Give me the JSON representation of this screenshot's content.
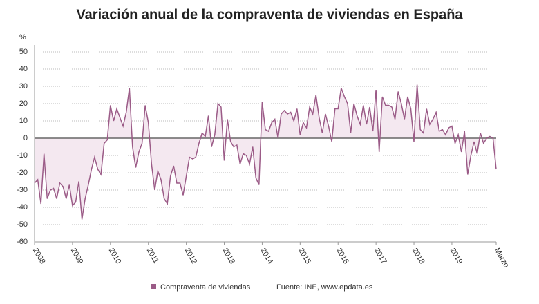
{
  "chart_data": {
    "type": "line",
    "title": "Variación anual de la compraventa de viviendas en España",
    "y_label": "%",
    "source": "Fuente: INE, www.epdata.es",
    "categories": [
      "2008",
      null,
      null,
      null,
      null,
      null,
      null,
      null,
      null,
      null,
      null,
      null,
      "2009",
      null,
      null,
      null,
      null,
      null,
      null,
      null,
      null,
      null,
      null,
      null,
      "2010",
      null,
      null,
      null,
      null,
      null,
      null,
      null,
      null,
      null,
      null,
      null,
      "2011",
      null,
      null,
      null,
      null,
      null,
      null,
      null,
      null,
      null,
      null,
      null,
      "2012",
      null,
      null,
      null,
      null,
      null,
      null,
      null,
      null,
      null,
      null,
      null,
      "2013",
      null,
      null,
      null,
      null,
      null,
      null,
      null,
      null,
      null,
      null,
      null,
      "2014",
      null,
      null,
      null,
      null,
      null,
      null,
      null,
      null,
      null,
      null,
      null,
      "2015",
      null,
      null,
      null,
      null,
      null,
      null,
      null,
      null,
      null,
      null,
      null,
      "2016",
      null,
      null,
      null,
      null,
      null,
      null,
      null,
      null,
      null,
      null,
      null,
      "2017",
      null,
      null,
      null,
      null,
      null,
      null,
      null,
      null,
      null,
      null,
      null,
      "2018",
      null,
      null,
      null,
      null,
      null,
      null,
      null,
      null,
      null,
      null,
      null,
      "2019",
      null,
      null,
      null,
      null,
      null,
      null,
      null,
      null,
      null,
      null,
      null,
      null,
      null,
      "Marzo"
    ],
    "series": [
      {
        "name": "Compraventa de viviendas",
        "color": "#9b5b87",
        "values": [
          -26,
          -24,
          -38,
          -9,
          -35,
          -30,
          -29,
          -35,
          -26,
          -28,
          -35,
          -27,
          -39,
          -37,
          -25,
          -47,
          -35,
          -27,
          -18,
          -11,
          -18,
          -21,
          -3,
          -1,
          19,
          10,
          17,
          12,
          7,
          15,
          29,
          -5,
          -17,
          -8,
          -3,
          19,
          9,
          -15,
          -30,
          -19,
          -24,
          -35,
          -38,
          -22,
          -16,
          -26,
          -26,
          -33,
          -22,
          -11,
          -12,
          -11,
          -3,
          3,
          1,
          13,
          -5,
          2,
          20,
          18,
          -13,
          11,
          -2,
          -5,
          -4,
          -15,
          -9,
          -10,
          -15,
          -5,
          -23,
          -27,
          21,
          5,
          4,
          9,
          11,
          0,
          14,
          16,
          14,
          15,
          10,
          17,
          2,
          9,
          6,
          18,
          14,
          25,
          12,
          3,
          14,
          7,
          -2,
          17,
          17,
          29,
          24,
          20,
          3,
          20,
          13,
          8,
          19,
          8,
          18,
          4,
          28,
          -8,
          24,
          19,
          19,
          18,
          11,
          27,
          20,
          11,
          24,
          17,
          -2,
          31,
          5,
          3,
          17,
          8,
          11,
          15,
          4,
          5,
          2,
          6,
          7,
          -3,
          2,
          -8,
          4,
          -21,
          -10,
          -2,
          -9,
          3,
          -3,
          0,
          1,
          0,
          -18
        ]
      }
    ],
    "ylim": [
      -60,
      50
    ],
    "yticks": [
      50,
      40,
      30,
      20,
      10,
      0,
      -10,
      -20,
      -30,
      -40,
      -50,
      -60
    ],
    "grid": true,
    "fill_color": "#f4e8f0"
  }
}
